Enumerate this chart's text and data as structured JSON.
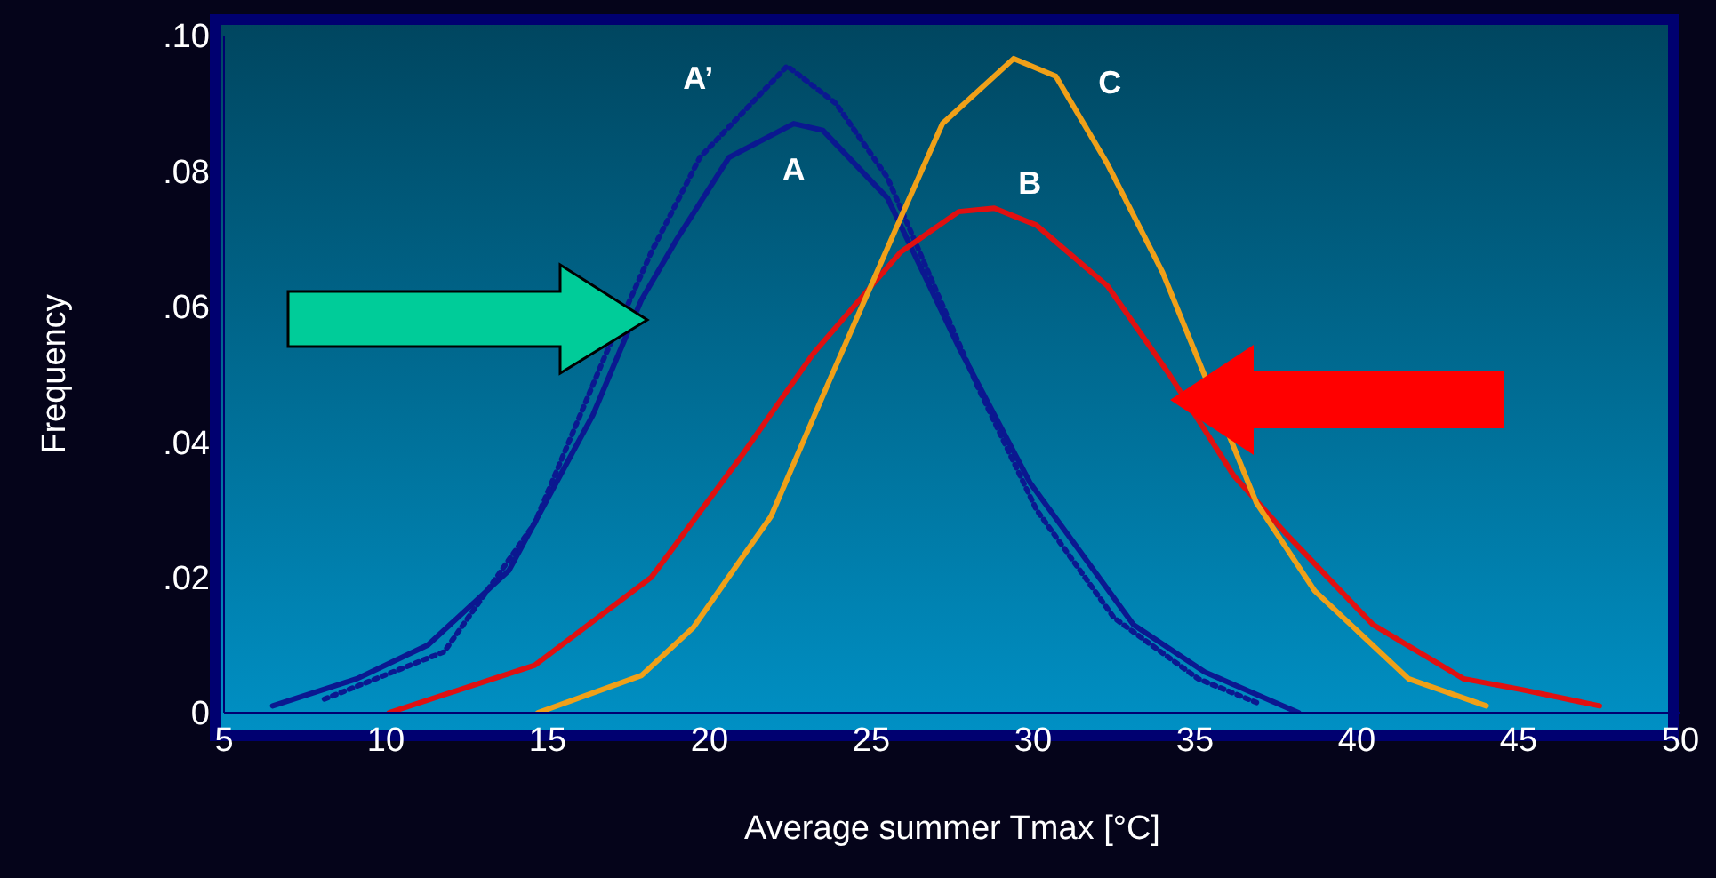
{
  "chart_data": {
    "type": "line",
    "xlabel": "Average summer Tmax [°C]",
    "ylabel": "Frequency",
    "xlim": [
      5,
      50
    ],
    "xticks": [
      5,
      10,
      15,
      20,
      25,
      30,
      35,
      40,
      45,
      50
    ],
    "ylim": [
      0,
      0.1
    ],
    "yticks": [
      {
        "value": 0,
        "label": "0"
      },
      {
        "value": 0.02,
        "label": ".02"
      },
      {
        "value": 0.04,
        "label": ".04"
      },
      {
        "value": 0.06,
        "label": ".06"
      },
      {
        "value": 0.08,
        "label": ".08"
      },
      {
        "value": 0.1,
        "label": ".10"
      }
    ],
    "grid": false,
    "legend": false,
    "marker": "none",
    "series": [
      {
        "name": "A",
        "color": "#0b1890",
        "line_style": "solid",
        "x": [
          6.5,
          9.1,
          11.3,
          13.8,
          16.4,
          17.9,
          19.0,
          20.6,
          22.6,
          23.5,
          25.5,
          27.7,
          29.9,
          33.1,
          35.3,
          38.2
        ],
        "values": [
          0.001,
          0.005,
          0.01,
          0.021,
          0.044,
          0.061,
          0.07,
          0.082,
          0.087,
          0.086,
          0.076,
          0.054,
          0.034,
          0.013,
          0.006,
          0.0
        ]
      },
      {
        "name": "A’",
        "color": "#0b1890",
        "line_style": "dotted",
        "x": [
          8.1,
          11.8,
          14.6,
          16.8,
          18.2,
          19.7,
          22.4,
          23.9,
          25.5,
          28.3,
          30.1,
          32.5,
          35.1,
          36.9
        ],
        "values": [
          0.002,
          0.009,
          0.028,
          0.053,
          0.068,
          0.082,
          0.0955,
          0.09,
          0.079,
          0.048,
          0.03,
          0.014,
          0.005,
          0.0015
        ]
      },
      {
        "name": "B",
        "color": "#e01010",
        "line_style": "solid",
        "x": [
          10.1,
          14.6,
          18.2,
          21.0,
          23.2,
          25.9,
          27.7,
          28.8,
          30.1,
          32.3,
          34.2,
          36.2,
          37.8,
          40.5,
          43.3,
          45.1,
          47.5
        ],
        "values": [
          0.0,
          0.007,
          0.02,
          0.038,
          0.053,
          0.068,
          0.074,
          0.0745,
          0.072,
          0.063,
          0.05,
          0.035,
          0.0265,
          0.013,
          0.005,
          0.0034,
          0.001
        ]
      },
      {
        "name": "C",
        "color": "#f0a018",
        "line_style": "solid",
        "x": [
          14.7,
          17.9,
          19.5,
          21.9,
          23.7,
          25.9,
          27.2,
          29.4,
          30.7,
          32.3,
          34.0,
          36.9,
          38.7,
          41.6,
          44.0
        ],
        "values": [
          0.0,
          0.0055,
          0.0126,
          0.029,
          0.049,
          0.073,
          0.087,
          0.0966,
          0.094,
          0.081,
          0.065,
          0.031,
          0.018,
          0.005,
          0.001
        ]
      }
    ]
  }
}
